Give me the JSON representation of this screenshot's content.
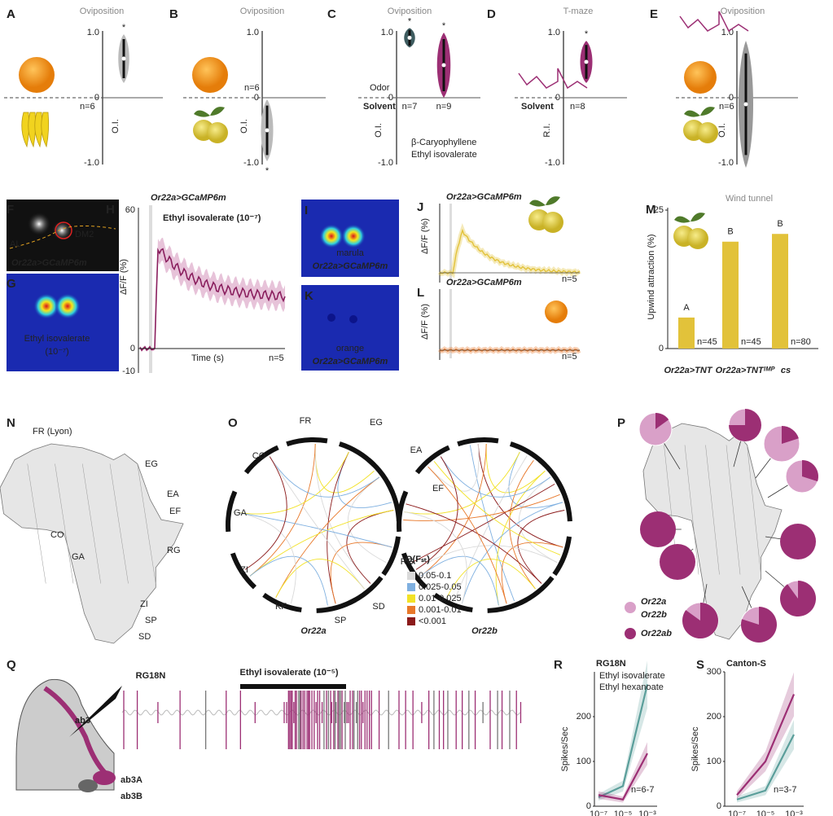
{
  "panels": {
    "A": {
      "label": "A",
      "title": "Oviposition",
      "yticks": [
        "1.0",
        "0",
        "-1.0"
      ],
      "n": "n=6",
      "star": "*",
      "ylabel": "O.I.",
      "median": 0.6
    },
    "B": {
      "label": "B",
      "title": "Oviposition",
      "yticks": [
        "1.0",
        "0",
        "-1.0"
      ],
      "n": "n=6",
      "star": "*",
      "ylabel": "O.I.",
      "median": -0.5
    },
    "C": {
      "label": "C",
      "title": "Oviposition",
      "yticks": [
        "1.0",
        "0",
        "-1.0"
      ],
      "odor": "Odor",
      "solvent": "Solvent",
      "ylabel": "O.I.",
      "violins": [
        {
          "name": "β-Caryophyllene",
          "color": "#3e5c60",
          "median": 0.92,
          "n": "n=7",
          "star": "*"
        },
        {
          "name": "Ethyl isovalerate",
          "color": "#9c2f74",
          "median": 0.5,
          "n": "n=9",
          "star": "*"
        }
      ]
    },
    "D": {
      "label": "D",
      "title": "T-maze",
      "yticks": [
        "1.0",
        "0",
        "-1.0"
      ],
      "solvent": "Solvent",
      "ylabel": "R.I.",
      "n": "n=8",
      "star": "*",
      "median": 0.55
    },
    "E": {
      "label": "E",
      "title": "Oviposition",
      "yticks": [
        "1.0",
        "0",
        "-1.0"
      ],
      "n": "n=6",
      "ylabel": "O.I.",
      "median": -0.1
    },
    "F": {
      "label": "F",
      "dm2": "DM2",
      "al": "AL",
      "genotype": "Or22a>GCaMP6m"
    },
    "G": {
      "label": "G",
      "odor": "Ethyl isovalerate",
      "conc": "(10⁻⁷)"
    },
    "H": {
      "label": "H",
      "genotype": "Or22a>GCaMP6m",
      "odor": "Ethyl isovalerate (10⁻⁷)",
      "yticks": [
        "60",
        "0",
        "-10"
      ],
      "ylabel": "ΔF/F (%)",
      "xlabel": "Time (s)",
      "n": "n=5"
    },
    "I": {
      "label": "I",
      "fruit": "marula",
      "genotype": "Or22a>GCaMP6m"
    },
    "J": {
      "label": "J",
      "genotype": "Or22a>GCaMP6m",
      "ylabel": "ΔF/F (%)",
      "n": "n=5"
    },
    "K": {
      "label": "K",
      "fruit": "orange",
      "genotype": "Or22a>GCaMP6m"
    },
    "L": {
      "label": "L",
      "genotype": "Or22a>GCaMP6m",
      "ylabel": "ΔF/F (%)",
      "n": "n=5"
    },
    "M": {
      "label": "M",
      "title": "Wind tunnel",
      "ylabel": "Upwind attraction (%)",
      "ylim": [
        0,
        25
      ],
      "yticks": [
        0,
        25
      ],
      "color": "#e2c23a",
      "categories": [
        "Or22a>TNT",
        "Or22a>TNTᴵᴹᴾ",
        "cs"
      ],
      "values": [
        5.6,
        19.3,
        20.7
      ],
      "groups": [
        "A",
        "B",
        "B"
      ],
      "n": [
        "n=45",
        "n=45",
        "n=80"
      ]
    },
    "N": {
      "label": "N",
      "sites": [
        "FR (Lyon)",
        "EG",
        "EA",
        "EF",
        "CO",
        "GA",
        "RG",
        "ZI",
        "SP",
        "SD"
      ]
    },
    "O": {
      "label": "O",
      "sites": [
        "FR",
        "EG",
        "EA",
        "EF",
        "RG",
        "SD",
        "SP",
        "KF",
        "ZI",
        "GA",
        "CO"
      ],
      "genes": [
        "Or22a",
        "Or22b"
      ],
      "legend_title": "Q(Fₛₜ)",
      "legend": [
        {
          "label": "0.05-0.1",
          "color": "#d9d9d9"
        },
        {
          "label": "0.025-0.05",
          "color": "#7fb0e0"
        },
        {
          "label": "0.01-0.025",
          "color": "#f2e227"
        },
        {
          "label": "0.001-0.01",
          "color": "#e8782a"
        },
        {
          "label": "<0.001",
          "color": "#8b1a1a"
        }
      ]
    },
    "P": {
      "label": "P",
      "legend": [
        "Or22a",
        "Or22b",
        "Or22ab"
      ],
      "light": "#d9a0c8",
      "dark": "#9c2f74",
      "pies": [
        0.15,
        0.75,
        0.2,
        0.3,
        1,
        1,
        1,
        0.9,
        0.85,
        0.8
      ]
    },
    "Q": {
      "label": "Q",
      "strain": "RG18N",
      "odor": "Ethyl isovalerate (10⁻⁵)",
      "sensillum": "ab3",
      "neurons": [
        "ab3A",
        "ab3B"
      ]
    },
    "R": {
      "label": "R",
      "title": "RG18N",
      "ylabel": "Spikes/Sec",
      "ylim": [
        0,
        300
      ],
      "yticks": [
        0,
        100,
        200
      ],
      "xticks": [
        "10⁻⁷",
        "10⁻⁵",
        "10⁻³"
      ],
      "series": [
        {
          "name": "Ethyl isovalerate",
          "color": "#5a9e9a",
          "values": [
            20,
            45,
            272
          ]
        },
        {
          "name": "Ethyl hexanoate",
          "color": "#9c2f74",
          "values": [
            25,
            15,
            118
          ]
        }
      ],
      "n": "n=6-7"
    },
    "S": {
      "label": "S",
      "title": "Canton-S",
      "ylabel": "Spikes/Sec",
      "ylim": [
        0,
        300
      ],
      "yticks": [
        0,
        100,
        200,
        300
      ],
      "xticks": [
        "10⁻⁷",
        "10⁻⁵",
        "10⁻³"
      ],
      "series": [
        {
          "color": "#5a9e9a",
          "values": [
            15,
            35,
            160
          ]
        },
        {
          "color": "#9c2f74",
          "values": [
            25,
            100,
            250
          ]
        }
      ],
      "n": "n=3-7"
    }
  }
}
